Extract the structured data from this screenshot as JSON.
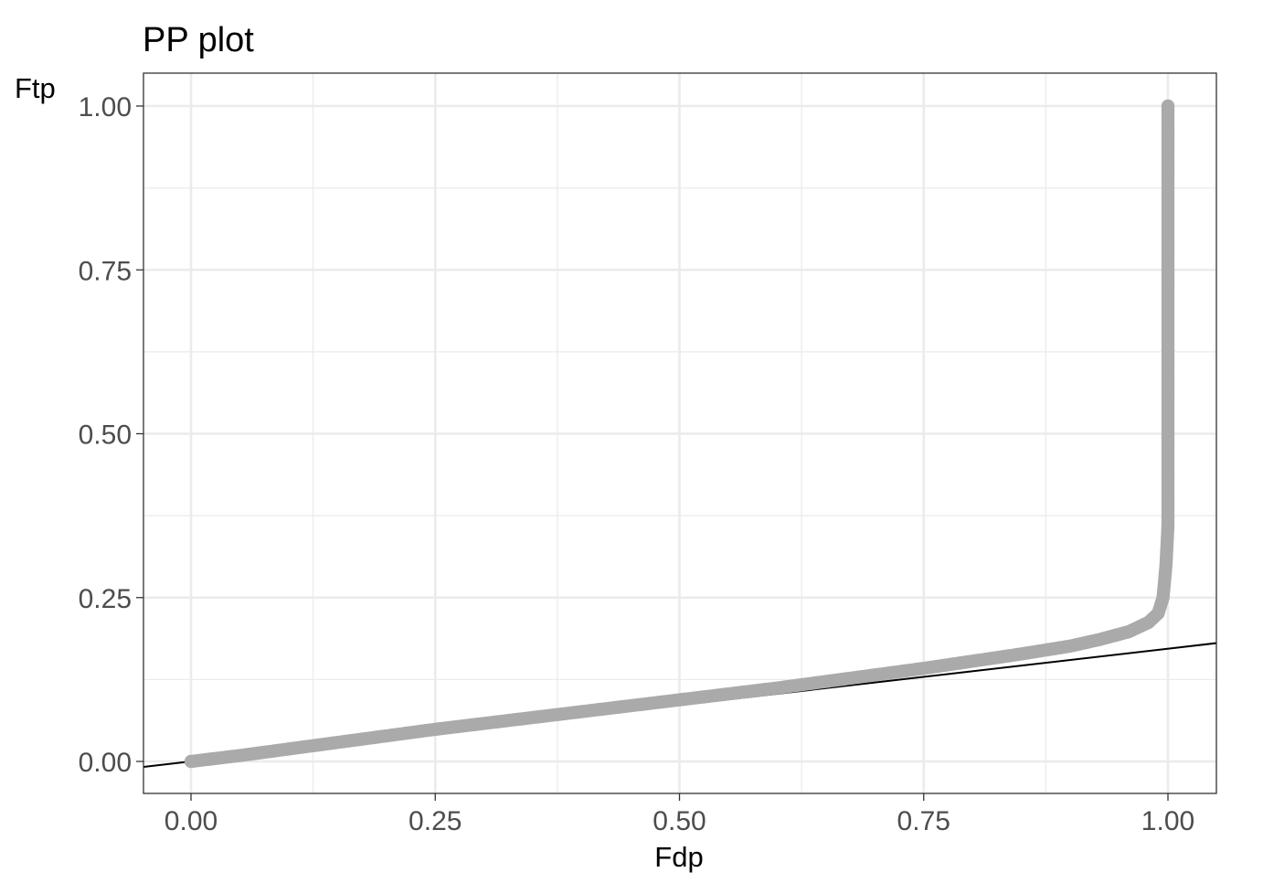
{
  "chart_data": {
    "type": "scatter",
    "title": "PP plot",
    "xlabel": "Fdp",
    "ylabel": "Ftp",
    "xlim": [
      -0.1,
      1.05
    ],
    "ylim": [
      -0.05,
      1.05
    ],
    "x_ticks": [
      "0.00",
      "0.25",
      "0.50",
      "0.75",
      "1.00"
    ],
    "y_ticks": [
      "0.00",
      "0.25",
      "0.50",
      "0.75",
      "1.00"
    ],
    "grid": true,
    "legend": "none",
    "reference_line": {
      "intercept": 0.0,
      "slope": 0.172,
      "color": "#000000"
    },
    "series": [
      {
        "color": "#aaaaaa",
        "points": [
          [
            0.0,
            0.0
          ],
          [
            0.05,
            0.009
          ],
          [
            0.1,
            0.019
          ],
          [
            0.15,
            0.029
          ],
          [
            0.2,
            0.039
          ],
          [
            0.25,
            0.049
          ],
          [
            0.3,
            0.058
          ],
          [
            0.35,
            0.067
          ],
          [
            0.4,
            0.076
          ],
          [
            0.45,
            0.085
          ],
          [
            0.5,
            0.094
          ],
          [
            0.55,
            0.103
          ],
          [
            0.6,
            0.112
          ],
          [
            0.65,
            0.122
          ],
          [
            0.7,
            0.132
          ],
          [
            0.75,
            0.142
          ],
          [
            0.8,
            0.153
          ],
          [
            0.85,
            0.164
          ],
          [
            0.9,
            0.176
          ],
          [
            0.93,
            0.186
          ],
          [
            0.96,
            0.198
          ],
          [
            0.98,
            0.212
          ],
          [
            0.99,
            0.226
          ],
          [
            0.995,
            0.25
          ],
          [
            0.998,
            0.3
          ],
          [
            1.0,
            0.36
          ],
          [
            1.0,
            0.5
          ],
          [
            1.0,
            0.65
          ],
          [
            1.0,
            0.8
          ],
          [
            1.0,
            0.9
          ],
          [
            1.0,
            1.0
          ]
        ]
      }
    ]
  }
}
